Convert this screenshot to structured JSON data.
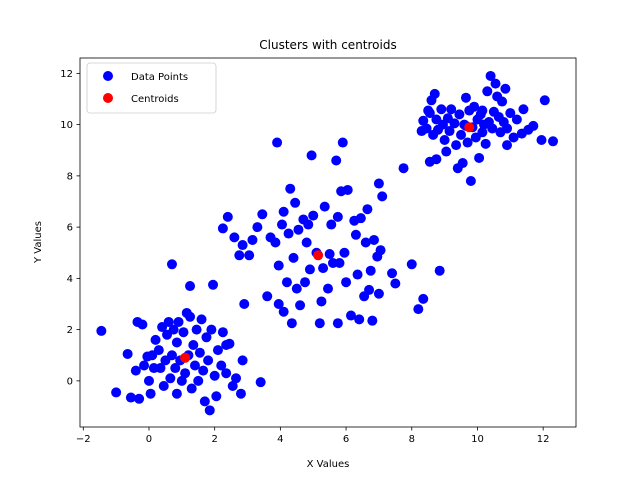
{
  "chart_data": {
    "type": "scatter",
    "title": "Clusters with centroids",
    "xlabel": "X Values",
    "ylabel": "Y Values",
    "xlim": [
      -2.1,
      13.0
    ],
    "ylim": [
      -1.8,
      12.6
    ],
    "xticks": [
      -2,
      0,
      2,
      4,
      6,
      8,
      10,
      12
    ],
    "yticks": [
      0,
      2,
      4,
      6,
      8,
      10,
      12
    ],
    "xtick_labels": [
      "−2",
      "0",
      "2",
      "4",
      "6",
      "8",
      "10",
      "12"
    ],
    "ytick_labels": [
      "0",
      "2",
      "4",
      "6",
      "8",
      "10",
      "12"
    ],
    "grid": false,
    "legend_position": "upper-left",
    "series": [
      {
        "name": "Data Points",
        "color": "#0000ff",
        "points": [
          [
            -1.45,
            1.95
          ],
          [
            -1.0,
            -0.45
          ],
          [
            -0.65,
            1.05
          ],
          [
            -0.55,
            -0.65
          ],
          [
            -0.4,
            0.4
          ],
          [
            -0.35,
            2.3
          ],
          [
            -0.3,
            -0.7
          ],
          [
            -0.2,
            2.2
          ],
          [
            -0.15,
            0.6
          ],
          [
            -0.05,
            0.95
          ],
          [
            0.0,
            0.0
          ],
          [
            0.05,
            -0.5
          ],
          [
            0.1,
            1.0
          ],
          [
            0.15,
            0.5
          ],
          [
            0.2,
            1.6
          ],
          [
            0.3,
            1.2
          ],
          [
            0.35,
            0.5
          ],
          [
            0.4,
            2.1
          ],
          [
            0.45,
            -0.2
          ],
          [
            0.5,
            0.8
          ],
          [
            0.55,
            1.8
          ],
          [
            0.6,
            2.3
          ],
          [
            0.65,
            0.1
          ],
          [
            0.7,
            4.55
          ],
          [
            0.7,
            1.0
          ],
          [
            0.75,
            2.0
          ],
          [
            0.8,
            0.5
          ],
          [
            0.85,
            1.5
          ],
          [
            0.85,
            -0.5
          ],
          [
            0.9,
            2.3
          ],
          [
            0.95,
            0.8
          ],
          [
            1.0,
            0.0
          ],
          [
            1.05,
            1.9
          ],
          [
            1.1,
            0.3
          ],
          [
            1.15,
            2.65
          ],
          [
            1.2,
            1.0
          ],
          [
            1.25,
            3.7
          ],
          [
            1.25,
            2.5
          ],
          [
            1.3,
            -0.3
          ],
          [
            1.35,
            1.4
          ],
          [
            1.4,
            0.6
          ],
          [
            1.45,
            2.0
          ],
          [
            1.5,
            0.0
          ],
          [
            1.55,
            1.1
          ],
          [
            1.6,
            2.4
          ],
          [
            1.65,
            0.4
          ],
          [
            1.7,
            -0.8
          ],
          [
            1.75,
            1.7
          ],
          [
            1.8,
            0.8
          ],
          [
            1.85,
            -1.15
          ],
          [
            1.9,
            2.0
          ],
          [
            1.95,
            3.75
          ],
          [
            2.0,
            0.2
          ],
          [
            2.05,
            -0.6
          ],
          [
            2.1,
            1.2
          ],
          [
            2.2,
            0.6
          ],
          [
            2.25,
            1.9
          ],
          [
            2.35,
            0.3
          ],
          [
            2.45,
            1.45
          ],
          [
            2.55,
            -0.2
          ],
          [
            2.65,
            0.1
          ],
          [
            2.8,
            -0.5
          ],
          [
            2.85,
            0.8
          ],
          [
            2.35,
            1.4
          ],
          [
            3.4,
            -0.05
          ],
          [
            2.9,
            3.0
          ],
          [
            2.25,
            5.95
          ],
          [
            2.4,
            6.4
          ],
          [
            2.6,
            5.6
          ],
          [
            2.75,
            4.9
          ],
          [
            2.85,
            5.3
          ],
          [
            3.05,
            4.9
          ],
          [
            3.15,
            5.5
          ],
          [
            3.3,
            6.0
          ],
          [
            3.45,
            6.5
          ],
          [
            3.6,
            3.3
          ],
          [
            3.7,
            5.6
          ],
          [
            3.85,
            5.4
          ],
          [
            3.9,
            9.3
          ],
          [
            3.95,
            3.0
          ],
          [
            3.95,
            4.5
          ],
          [
            4.05,
            6.1
          ],
          [
            4.1,
            6.6
          ],
          [
            4.1,
            2.7
          ],
          [
            4.2,
            3.85
          ],
          [
            4.25,
            5.75
          ],
          [
            4.3,
            7.5
          ],
          [
            4.35,
            2.25
          ],
          [
            4.4,
            4.8
          ],
          [
            4.45,
            6.95
          ],
          [
            4.5,
            3.6
          ],
          [
            4.55,
            5.9
          ],
          [
            4.6,
            2.95
          ],
          [
            4.7,
            6.3
          ],
          [
            4.75,
            3.85
          ],
          [
            4.8,
            5.4
          ],
          [
            4.85,
            6.1
          ],
          [
            4.9,
            4.35
          ],
          [
            4.95,
            8.8
          ],
          [
            5.0,
            6.45
          ],
          [
            5.1,
            5.0
          ],
          [
            5.2,
            2.25
          ],
          [
            5.25,
            3.1
          ],
          [
            5.3,
            4.4
          ],
          [
            5.35,
            6.8
          ],
          [
            5.45,
            3.6
          ],
          [
            5.5,
            4.95
          ],
          [
            5.55,
            6.1
          ],
          [
            5.6,
            4.6
          ],
          [
            5.7,
            8.6
          ],
          [
            5.75,
            6.4
          ],
          [
            5.75,
            2.25
          ],
          [
            5.8,
            4.6
          ],
          [
            5.85,
            7.4
          ],
          [
            5.9,
            9.3
          ],
          [
            5.95,
            5.0
          ],
          [
            6.0,
            3.85
          ],
          [
            6.05,
            7.45
          ],
          [
            6.15,
            2.55
          ],
          [
            6.25,
            6.25
          ],
          [
            6.3,
            5.7
          ],
          [
            6.35,
            4.15
          ],
          [
            6.4,
            2.4
          ],
          [
            6.45,
            6.35
          ],
          [
            6.55,
            3.3
          ],
          [
            6.6,
            5.4
          ],
          [
            6.65,
            6.7
          ],
          [
            6.7,
            3.55
          ],
          [
            6.75,
            4.3
          ],
          [
            6.8,
            2.35
          ],
          [
            6.85,
            5.5
          ],
          [
            6.95,
            4.85
          ],
          [
            7.0,
            7.7
          ],
          [
            7.0,
            3.4
          ],
          [
            7.05,
            5.1
          ],
          [
            7.1,
            7.2
          ],
          [
            7.4,
            4.2
          ],
          [
            7.5,
            3.8
          ],
          [
            7.75,
            8.3
          ],
          [
            8.0,
            4.55
          ],
          [
            8.2,
            2.8
          ],
          [
            8.35,
            3.2
          ],
          [
            8.35,
            10.15
          ],
          [
            8.45,
            9.85
          ],
          [
            8.5,
            10.55
          ],
          [
            8.55,
            8.55
          ],
          [
            8.6,
            10.95
          ],
          [
            8.65,
            9.6
          ],
          [
            8.7,
            11.2
          ],
          [
            8.75,
            10.2
          ],
          [
            8.8,
            9.8
          ],
          [
            8.85,
            4.3
          ],
          [
            8.9,
            10.6
          ],
          [
            8.95,
            10.0
          ],
          [
            9.0,
            9.4
          ],
          [
            9.05,
            8.95
          ],
          [
            9.1,
            10.25
          ],
          [
            9.15,
            9.75
          ],
          [
            9.2,
            10.6
          ],
          [
            9.3,
            10.05
          ],
          [
            9.35,
            9.2
          ],
          [
            9.4,
            8.3
          ],
          [
            9.45,
            10.4
          ],
          [
            9.5,
            9.6
          ],
          [
            9.55,
            8.5
          ],
          [
            9.6,
            10.0
          ],
          [
            9.65,
            11.05
          ],
          [
            9.7,
            9.3
          ],
          [
            9.75,
            10.55
          ],
          [
            9.8,
            7.8
          ],
          [
            9.85,
            9.9
          ],
          [
            9.9,
            10.7
          ],
          [
            9.95,
            9.5
          ],
          [
            10.0,
            10.2
          ],
          [
            10.05,
            8.7
          ],
          [
            10.1,
            10.4
          ],
          [
            10.15,
            9.7
          ],
          [
            10.2,
            10.0
          ],
          [
            10.25,
            9.25
          ],
          [
            10.3,
            11.3
          ],
          [
            10.35,
            10.1
          ],
          [
            10.4,
            11.9
          ],
          [
            10.45,
            9.85
          ],
          [
            10.5,
            10.5
          ],
          [
            10.55,
            11.6
          ],
          [
            10.6,
            11.1
          ],
          [
            10.65,
            10.3
          ],
          [
            10.7,
            9.7
          ],
          [
            10.8,
            10.1
          ],
          [
            10.85,
            11.4
          ],
          [
            10.9,
            9.2
          ],
          [
            10.9,
            9.85
          ],
          [
            11.0,
            10.45
          ],
          [
            11.1,
            9.5
          ],
          [
            11.2,
            10.2
          ],
          [
            11.4,
            10.6
          ],
          [
            11.55,
            9.8
          ],
          [
            11.7,
            9.95
          ],
          [
            11.95,
            9.4
          ],
          [
            12.05,
            10.95
          ],
          [
            12.3,
            9.35
          ],
          [
            8.3,
            9.75
          ],
          [
            8.75,
            8.65
          ],
          [
            9.65,
            9.95
          ],
          [
            10.15,
            10.55
          ],
          [
            10.75,
            10.9
          ],
          [
            11.35,
            9.65
          ],
          [
            8.55,
            10.45
          ]
        ]
      },
      {
        "name": "Centroids",
        "color": "#ff0000",
        "points": [
          [
            1.1,
            0.9
          ],
          [
            5.15,
            4.9
          ],
          [
            9.75,
            9.9
          ]
        ]
      }
    ]
  }
}
